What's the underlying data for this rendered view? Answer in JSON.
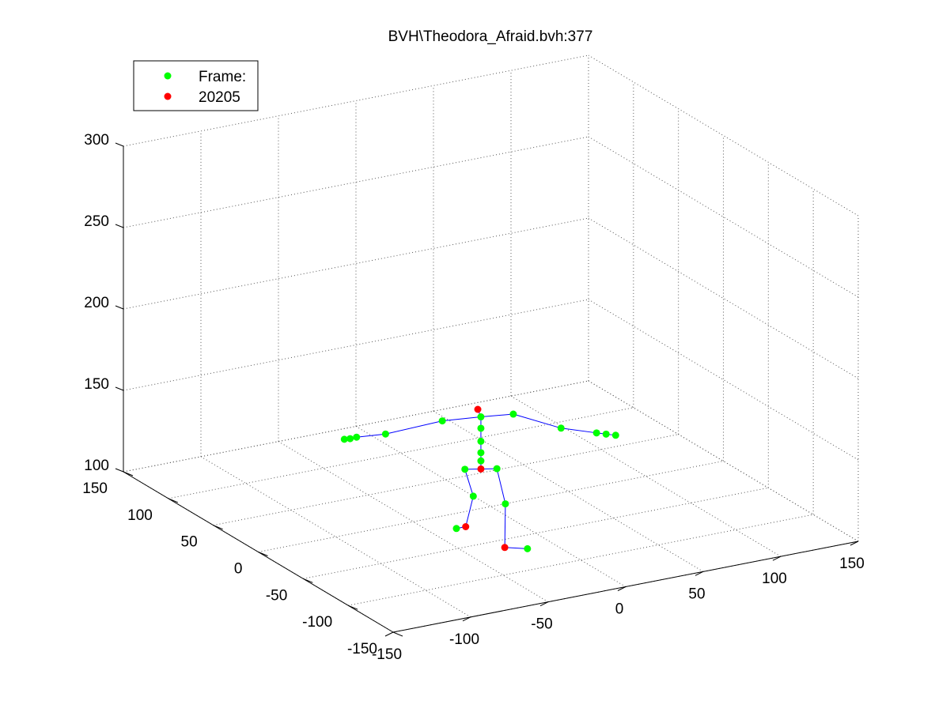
{
  "chart_data": {
    "type": "scatter",
    "title": "BVH\\Theodora_Afraid.bvh:377",
    "legend": {
      "placement": "top-left",
      "entries": [
        {
          "label": "Frame:",
          "color": "#00ff00"
        },
        {
          "label": "20205",
          "color": "#ff0000"
        }
      ]
    },
    "grid": true,
    "x_ticks": [
      "-150",
      "-100",
      "-50",
      "0",
      "50",
      "100",
      "150"
    ],
    "y_ticks": [
      "-150",
      "-100",
      "-50",
      "0",
      "50",
      "100",
      "150"
    ],
    "z_ticks": [
      "100",
      "150",
      "200",
      "250",
      "300"
    ],
    "xlim": [
      -150,
      150
    ],
    "ylim": [
      -150,
      150
    ],
    "zlim": [
      100,
      300
    ],
    "colors": {
      "joint": "#00ff00",
      "highlight": "#ff0000",
      "bone": "#0000ff"
    },
    "joints": [
      {
        "id": "head",
        "x": -20,
        "y": -20,
        "z": 170,
        "highlight": true
      },
      {
        "id": "neck",
        "x": -18,
        "y": -20,
        "z": 165
      },
      {
        "id": "lshoulder",
        "x": -40,
        "y": -15,
        "z": 165
      },
      {
        "id": "lelbow",
        "x": -65,
        "y": 5,
        "z": 155
      },
      {
        "id": "lwrist",
        "x": -75,
        "y": 20,
        "z": 150
      },
      {
        "id": "lhand",
        "x": -78,
        "y": 22,
        "z": 149
      },
      {
        "id": "lfinger",
        "x": -80,
        "y": 25,
        "z": 148
      },
      {
        "id": "rshoulder",
        "x": 0,
        "y": -25,
        "z": 165
      },
      {
        "id": "relbow",
        "x": 25,
        "y": -35,
        "z": 155
      },
      {
        "id": "rwrist",
        "x": 45,
        "y": -40,
        "z": 150
      },
      {
        "id": "rhand",
        "x": 50,
        "y": -42,
        "z": 149
      },
      {
        "id": "rfinger",
        "x": 55,
        "y": -44,
        "z": 148
      },
      {
        "id": "spine3",
        "x": -18,
        "y": -20,
        "z": 158
      },
      {
        "id": "spine2",
        "x": -18,
        "y": -20,
        "z": 150
      },
      {
        "id": "spine1",
        "x": -18,
        "y": -20,
        "z": 143
      },
      {
        "id": "spine",
        "x": -18,
        "y": -20,
        "z": 138
      },
      {
        "id": "hips",
        "x": -18,
        "y": -20,
        "z": 133,
        "highlight": true
      },
      {
        "id": "lhip",
        "x": -26,
        "y": -16,
        "z": 133
      },
      {
        "id": "lknee",
        "x": -20,
        "y": -15,
        "z": 115
      },
      {
        "id": "lankle",
        "x": -22,
        "y": -10,
        "z": 95,
        "highlight": true
      },
      {
        "id": "ltoe",
        "x": -28,
        "y": -10,
        "z": 95
      },
      {
        "id": "rhip",
        "x": -10,
        "y": -24,
        "z": 133
      },
      {
        "id": "rknee",
        "x": -8,
        "y": -30,
        "z": 113
      },
      {
        "id": "rankle",
        "x": -20,
        "y": -50,
        "z": 95,
        "highlight": true
      },
      {
        "id": "rtoe",
        "x": -10,
        "y": -58,
        "z": 95
      }
    ],
    "bones": [
      [
        "head",
        "neck"
      ],
      [
        "neck",
        "lshoulder"
      ],
      [
        "lshoulder",
        "lelbow"
      ],
      [
        "lelbow",
        "lwrist"
      ],
      [
        "lwrist",
        "lhand"
      ],
      [
        "lhand",
        "lfinger"
      ],
      [
        "neck",
        "rshoulder"
      ],
      [
        "rshoulder",
        "relbow"
      ],
      [
        "relbow",
        "rwrist"
      ],
      [
        "rwrist",
        "rhand"
      ],
      [
        "rhand",
        "rfinger"
      ],
      [
        "neck",
        "spine3"
      ],
      [
        "spine3",
        "spine2"
      ],
      [
        "spine2",
        "spine1"
      ],
      [
        "spine1",
        "spine"
      ],
      [
        "spine",
        "hips"
      ],
      [
        "hips",
        "lhip"
      ],
      [
        "lhip",
        "lknee"
      ],
      [
        "lknee",
        "lankle"
      ],
      [
        "lankle",
        "ltoe"
      ],
      [
        "hips",
        "rhip"
      ],
      [
        "rhip",
        "rknee"
      ],
      [
        "rknee",
        "rankle"
      ],
      [
        "rankle",
        "rtoe"
      ]
    ]
  }
}
